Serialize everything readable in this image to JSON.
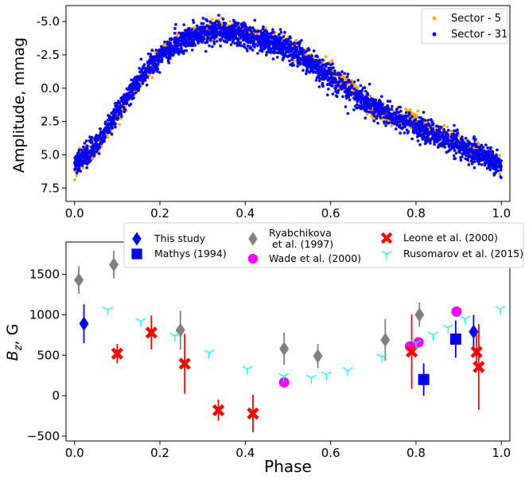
{
  "chart_data": [
    {
      "type": "scatter",
      "title": "",
      "xlabel": "",
      "ylabel": "Amplitude, mmag",
      "xlim": [
        -0.02,
        1.02
      ],
      "ylim": [
        8.5,
        -6.2
      ],
      "y_inverted": true,
      "xticks": [
        "0.0",
        "0.2",
        "0.4",
        "0.6",
        "0.8",
        "1.0"
      ],
      "xtick_values": [
        0.0,
        0.2,
        0.4,
        0.6,
        0.8,
        1.0
      ],
      "yticks": [
        "-5.0",
        "-2.5",
        "0.0",
        "2.5",
        "5.0",
        "7.5"
      ],
      "ytick_values": [
        -5.0,
        -2.5,
        0.0,
        2.5,
        5.0,
        7.5
      ],
      "legend": {
        "placement": "top-right",
        "entries": [
          "Sector - 5",
          "Sector - 31"
        ]
      },
      "series": [
        {
          "name": "Sector - 5",
          "color": "#ffa500",
          "marker": "circle",
          "phase": [
            0.0,
            0.05,
            0.1,
            0.15,
            0.2,
            0.25,
            0.3,
            0.35,
            0.4,
            0.45,
            0.5,
            0.55,
            0.6,
            0.65,
            0.7,
            0.75,
            0.8,
            0.85,
            0.9,
            0.95,
            1.0
          ],
          "amplitude": [
            6.0,
            4.5,
            2.0,
            -0.5,
            -2.6,
            -3.8,
            -4.3,
            -4.5,
            -4.3,
            -3.8,
            -3.1,
            -2.2,
            -1.2,
            0.0,
            1.7,
            2.2,
            2.5,
            3.4,
            4.2,
            5.0,
            5.8
          ],
          "scatter": 0.6
        },
        {
          "name": "Sector - 31",
          "color": "#0000ff",
          "marker": "circle",
          "phase": [
            0.0,
            0.05,
            0.1,
            0.15,
            0.2,
            0.25,
            0.3,
            0.35,
            0.4,
            0.45,
            0.5,
            0.55,
            0.6,
            0.65,
            0.7,
            0.75,
            0.8,
            0.85,
            0.9,
            0.95,
            1.0
          ],
          "amplitude": [
            5.8,
            4.3,
            1.8,
            -0.6,
            -2.4,
            -3.6,
            -4.2,
            -4.3,
            -4.0,
            -3.5,
            -3.0,
            -2.0,
            -0.9,
            0.5,
            1.3,
            2.2,
            2.9,
            3.6,
            4.3,
            5.0,
            5.8
          ],
          "scatter": 0.8
        }
      ]
    },
    {
      "type": "scatter",
      "title": "",
      "xlabel": "Phase",
      "ylabel": "B_z, G",
      "xlim": [
        -0.02,
        1.02
      ],
      "ylim": [
        -560,
        1900
      ],
      "xticks": [
        "0.0",
        "0.2",
        "0.4",
        "0.6",
        "0.8",
        "1.0"
      ],
      "xtick_values": [
        0.0,
        0.2,
        0.4,
        0.6,
        0.8,
        1.0
      ],
      "yticks": [
        "−500",
        "0",
        "500",
        "1000",
        "1500"
      ],
      "ytick_values": [
        -500,
        0,
        500,
        1000,
        1500
      ],
      "legend": {
        "placement": "top-center"
      },
      "series": [
        {
          "name": "This study",
          "color": "#0000ff",
          "marker": "diamond",
          "errcolor": "#0000ff",
          "points": [
            [
              0.022,
              890,
              240
            ],
            [
              0.935,
              790,
              210
            ]
          ]
        },
        {
          "name": "Mathys (1994)",
          "color": "#0000ff",
          "marker": "square",
          "errcolor": "#0000ff",
          "points": [
            [
              0.818,
              200,
              200
            ],
            [
              0.893,
              700,
              230
            ]
          ]
        },
        {
          "name": "Ryabchikova\n et al. (1997)",
          "color": "#808080",
          "marker": "diamond",
          "errcolor": "#808080",
          "points": [
            [
              0.01,
              1430,
              170
            ],
            [
              0.092,
              1620,
              170
            ],
            [
              0.248,
              810,
              240
            ],
            [
              0.491,
              580,
              200
            ],
            [
              0.57,
              490,
              150
            ],
            [
              0.728,
              690,
              260
            ],
            [
              0.808,
              1000,
              150
            ]
          ]
        },
        {
          "name": "Wade et al. (2000)",
          "color": "#ff00ff",
          "marker": "circle",
          "errcolor": "#ff00ff",
          "points": [
            [
              0.491,
              165,
              0
            ],
            [
              0.786,
              610,
              0
            ],
            [
              0.806,
              660,
              0
            ],
            [
              0.895,
              1040,
              0
            ]
          ]
        },
        {
          "name": "Leone et al. (2000)",
          "color": "#ff0000",
          "marker": "x",
          "errcolor": "#ff0000",
          "points": [
            [
              0.1,
              520,
              120
            ],
            [
              0.18,
              780,
              210
            ],
            [
              0.258,
              395,
              370
            ],
            [
              0.337,
              -180,
              130
            ],
            [
              0.418,
              -220,
              230
            ],
            [
              0.79,
              545,
              460
            ],
            [
              0.942,
              540,
              230
            ],
            [
              0.947,
              355,
              530
            ]
          ]
        },
        {
          "name": "Rusomarov et al. (2015)",
          "color": "#00ffff",
          "marker": "tri",
          "errcolor": "#00ffff",
          "points": [
            [
              0.078,
              1060,
              0
            ],
            [
              0.155,
              920,
              0
            ],
            [
              0.235,
              740,
              0
            ],
            [
              0.315,
              530,
              0
            ],
            [
              0.405,
              330,
              0
            ],
            [
              0.49,
              240,
              0
            ],
            [
              0.555,
              220,
              0
            ],
            [
              0.59,
              260,
              0
            ],
            [
              0.64,
              310,
              0
            ],
            [
              0.72,
              480,
              0
            ],
            [
              0.8,
              650,
              0
            ],
            [
              0.84,
              750,
              0
            ],
            [
              0.875,
              840,
              0
            ],
            [
              0.915,
              950,
              0
            ],
            [
              0.998,
              1070,
              0
            ]
          ]
        }
      ]
    }
  ]
}
